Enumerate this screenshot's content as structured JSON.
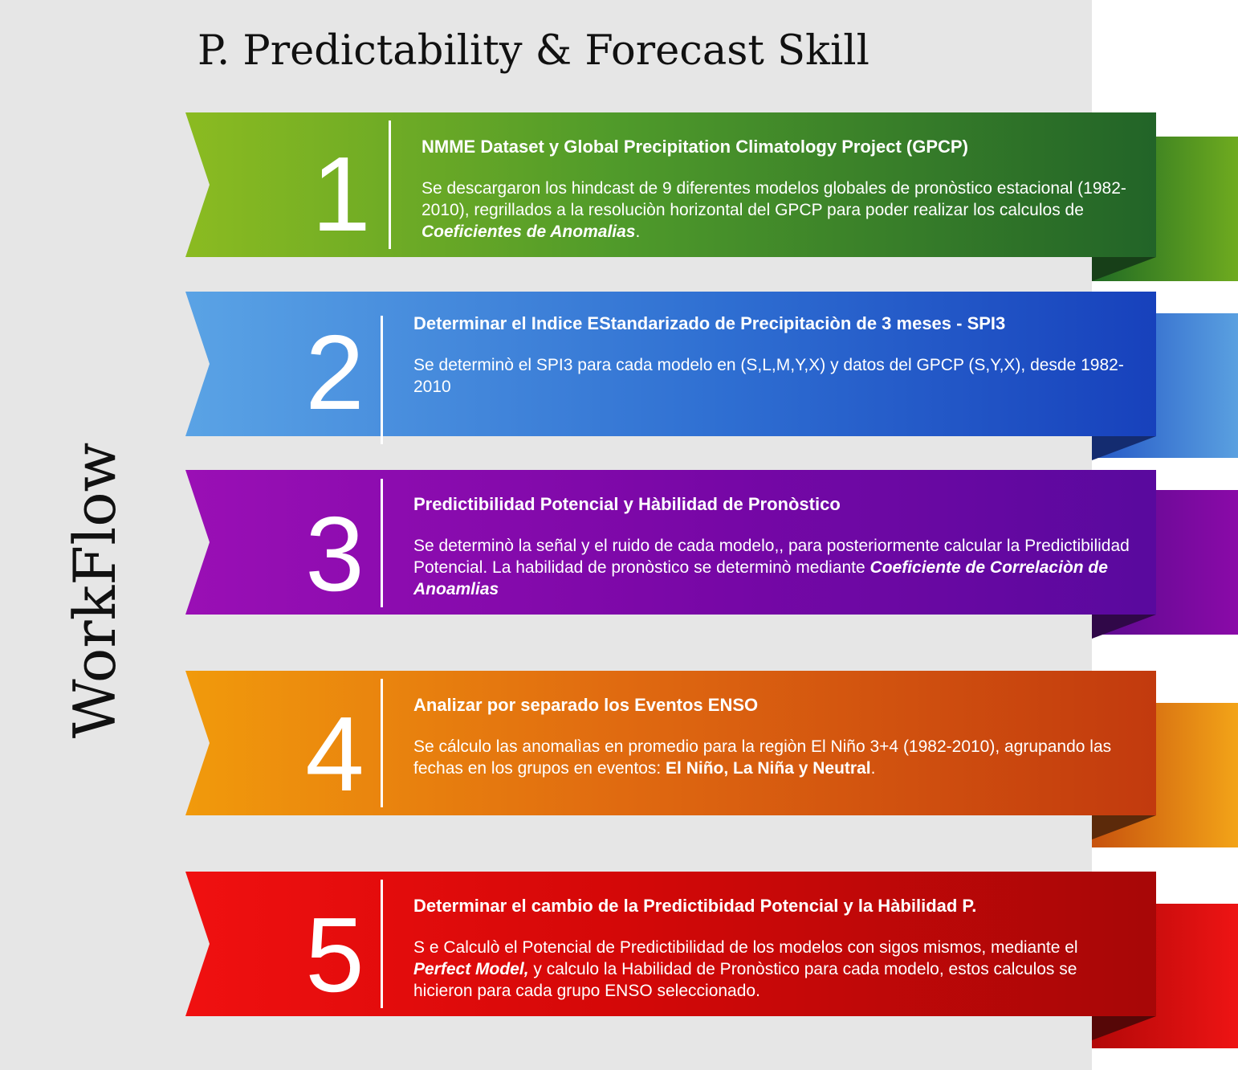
{
  "title": "P. Predictability & Forecast Skill",
  "side_label": "WorkFlow",
  "steps": [
    {
      "number": "1",
      "title": "NMME Dataset y Global Precipitation Climatology Project (GPCP)",
      "desc_1": "Se descargaron los hindcast de 9 diferentes modelos globales de pronòstico estacional (1982-2010), regrillados a la resoluciòn horizontal del GPCP para poder realizar los calculos de ",
      "desc_em": "Coeficientes de Anomalias",
      "desc_2": "."
    },
    {
      "number": "2",
      "title": "Determinar el Indice EStandarizado de Precipitaciòn de 3 meses - SPI3",
      "desc_1": "Se determinò el SPI3 para cada modelo en (S,L,M,Y,X) y datos del GPCP (S,Y,X), desde 1982-2010"
    },
    {
      "number": "3",
      "title": "Predictibilidad Potencial y Hàbilidad de Pronòstico",
      "desc_1": "Se determinò la señal y el ruido de cada modelo,, para posteriormente calcular la Predictibilidad Potencial. La habilidad de pronòstico se determinò mediante ",
      "desc_em": "Coeficiente de Correlaciòn de Anoamlias"
    },
    {
      "number": "4",
      "title": "Analizar por separado los Eventos ENSO",
      "desc_1": "Se cálculo las anomalìas en promedio para la regiòn El Niño 3+4 (1982-2010), agrupando las fechas en los grupos en eventos: ",
      "desc_bold": "El Niño, La Niña y Neutral",
      "desc_2": "."
    },
    {
      "number": "5",
      "title": "Determinar el cambio de la Predictibidad Potencial y la Hàbilidad P.",
      "desc_1": "S e Calculò el Potencial de Predictibilidad de los modelos con sigos mismos, mediante el ",
      "desc_em": "Perfect Model,",
      "desc_2": " y calculo la Habilidad de Pronòstico para cada modelo, estos calculos se hicieron para cada grupo ENSO seleccionado."
    }
  ]
}
